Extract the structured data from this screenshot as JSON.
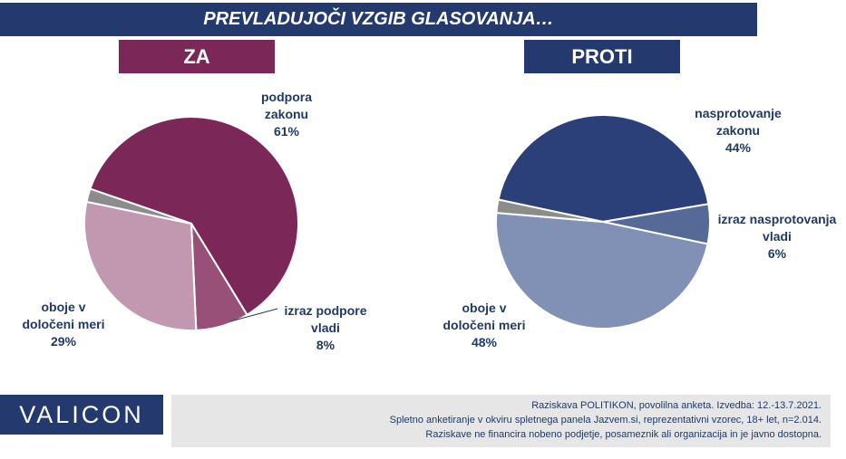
{
  "title": "PREVLADUJOČI VZGIB GLASOVANJA…",
  "za_label": "ZA",
  "proti_label": "PROTI",
  "chart_data": [
    {
      "type": "pie",
      "title": "ZA",
      "slices": [
        {
          "label_lines": [
            "podpora",
            "zakonu",
            "61%"
          ],
          "value": 61,
          "color": "#7b2757"
        },
        {
          "label_lines": [
            "izraz podpore",
            "vladi",
            "8%"
          ],
          "value": 8,
          "color": "#985078"
        },
        {
          "label_lines": [
            "oboje v",
            "določeni meri",
            "29%"
          ],
          "value": 29,
          "color": "#c298b0"
        },
        {
          "label_lines": [],
          "value": 2,
          "color": "#8c8c8c"
        }
      ]
    },
    {
      "type": "pie",
      "title": "PROTI",
      "slices": [
        {
          "label_lines": [
            "nasprotovanje",
            "zakonu",
            "44%"
          ],
          "value": 44,
          "color": "#2b4079"
        },
        {
          "label_lines": [
            "izraz nasprotovanja",
            "vladi",
            "6%"
          ],
          "value": 6,
          "color": "#566a98"
        },
        {
          "label_lines": [
            "oboje v",
            "določeni meri",
            "48%"
          ],
          "value": 48,
          "color": "#8190b5"
        },
        {
          "label_lines": [],
          "value": 2,
          "color": "#8c8c8c"
        }
      ]
    }
  ],
  "brand": "VALICON",
  "footnote": [
    "Raziskava POLITIKON, povolilna anketa. Izvedba: 12.-13.7.2021.",
    "Spletno anketiranje v okviru spletnega panela Jazvem.si, reprezentativni vzorec, 18+ let, n=2.014.",
    "Raziskave ne financira nobeno podjetje, posameznik ali organizacija in je javno dostopna."
  ]
}
